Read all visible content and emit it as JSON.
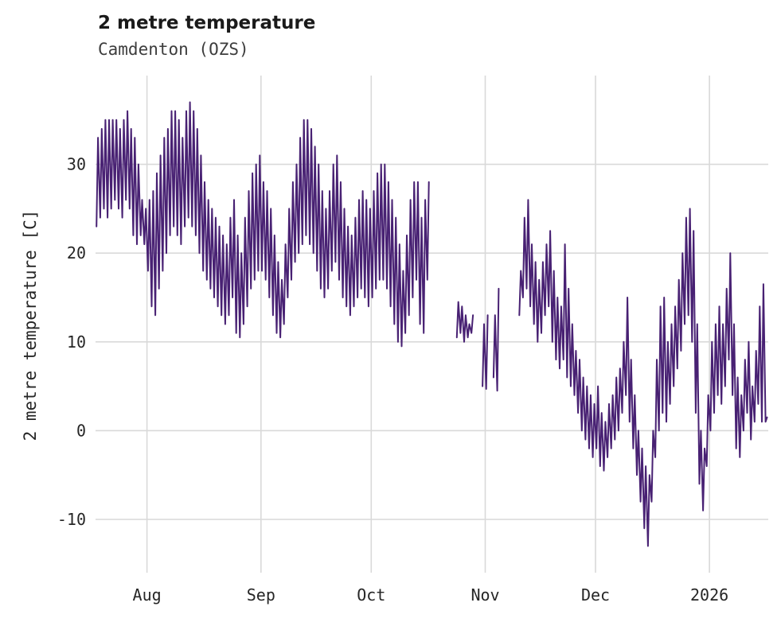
{
  "chart_data": {
    "type": "line",
    "title": "2 metre temperature",
    "subtitle": "Camdenton (OZS)",
    "ylabel": "2 metre temperature [C]",
    "xlabel": "",
    "line_color": "#482173",
    "grid_color": "#d9d9d9",
    "background": "#ffffff",
    "legend": "none",
    "grid": true,
    "xlim_days": [
      0,
      183
    ],
    "ylim": [
      -16,
      40
    ],
    "xticks": [
      {
        "label": "Aug",
        "day": 14
      },
      {
        "label": "Sep",
        "day": 45
      },
      {
        "label": "Oct",
        "day": 75
      },
      {
        "label": "Nov",
        "day": 106
      },
      {
        "label": "Dec",
        "day": 136
      },
      {
        "label": "2026",
        "day": 167
      }
    ],
    "yticks": [
      -10,
      0,
      10,
      20,
      30
    ],
    "series": [
      {
        "name": "2 metre temperature",
        "unit": "C",
        "segments": [
          {
            "start_day": 0,
            "daily_min_max": [
              [
                23,
                33
              ],
              [
                24,
                34
              ],
              [
                25,
                35
              ],
              [
                24,
                35
              ],
              [
                25,
                35
              ],
              [
                26,
                35
              ],
              [
                25,
                34
              ],
              [
                24,
                35
              ],
              [
                26,
                36
              ],
              [
                25,
                34
              ],
              [
                22,
                33
              ],
              [
                21,
                30
              ],
              [
                22,
                26
              ],
              [
                21,
                25
              ],
              [
                18,
                26
              ],
              [
                14,
                27
              ],
              [
                13,
                29
              ],
              [
                16,
                31
              ],
              [
                18,
                33
              ],
              [
                20,
                34
              ],
              [
                22,
                36
              ],
              [
                23,
                36
              ],
              [
                22,
                35
              ],
              [
                21,
                33
              ],
              [
                23,
                36
              ],
              [
                24,
                37
              ],
              [
                23,
                36
              ],
              [
                22,
                34
              ],
              [
                20,
                31
              ],
              [
                18,
                28
              ],
              [
                17,
                26
              ],
              [
                16,
                25
              ],
              [
                15,
                24
              ],
              [
                14,
                23
              ],
              [
                13,
                22
              ],
              [
                12,
                21
              ],
              [
                13,
                24
              ],
              [
                15,
                26
              ],
              [
                11,
                22
              ],
              [
                10.5,
                20
              ],
              [
                12,
                24
              ],
              [
                14,
                27
              ],
              [
                16,
                29
              ],
              [
                17,
                30
              ],
              [
                18,
                31
              ],
              [
                18,
                28
              ],
              [
                17,
                27
              ],
              [
                15,
                25
              ],
              [
                13,
                22
              ],
              [
                11,
                19
              ],
              [
                10.5,
                17
              ],
              [
                12,
                21
              ],
              [
                15,
                25
              ],
              [
                17,
                28
              ],
              [
                19,
                30
              ],
              [
                20,
                33
              ],
              [
                21,
                35
              ],
              [
                22,
                35
              ],
              [
                21,
                34
              ],
              [
                20,
                32
              ],
              [
                18,
                30
              ],
              [
                16,
                27
              ],
              [
                15,
                25
              ],
              [
                16,
                27
              ],
              [
                18,
                30
              ],
              [
                19,
                31
              ],
              [
                17,
                28
              ],
              [
                15,
                25
              ],
              [
                14,
                23
              ],
              [
                13,
                22
              ],
              [
                14,
                24
              ],
              [
                15,
                26
              ],
              [
                16,
                27
              ],
              [
                15,
                26
              ],
              [
                14,
                25
              ],
              [
                15,
                27
              ],
              [
                16,
                29
              ],
              [
                17,
                30
              ],
              [
                17,
                30
              ],
              [
                16,
                28
              ],
              [
                14,
                26
              ],
              [
                12,
                24
              ],
              [
                10,
                21
              ],
              [
                9.5,
                18
              ],
              [
                11,
                22
              ],
              [
                13,
                26
              ],
              [
                15,
                28
              ],
              [
                17,
                28
              ],
              [
                12,
                24
              ],
              [
                11,
                26
              ],
              [
                17,
                28
              ]
            ]
          },
          {
            "start_day": 98,
            "daily_min_max": [
              [
                10.5,
                14.5
              ],
              [
                11,
                14
              ],
              [
                10,
                13
              ],
              [
                10.5,
                12
              ],
              [
                11,
                13
              ]
            ]
          },
          {
            "start_day": 105,
            "daily_min_max": [
              [
                5,
                12
              ],
              [
                4.7,
                13
              ]
            ]
          },
          {
            "start_day": 108,
            "daily_min_max": [
              [
                6,
                13
              ],
              [
                4.5,
                16
              ]
            ]
          },
          {
            "start_day": 115,
            "daily_min_max": [
              [
                13,
                18
              ],
              [
                15,
                24
              ],
              [
                16,
                26
              ],
              [
                14,
                21
              ],
              [
                12,
                19
              ],
              [
                10,
                17
              ],
              [
                11,
                19
              ],
              [
                13,
                21
              ],
              [
                14,
                22.5
              ],
              [
                10,
                18
              ],
              [
                8,
                15
              ],
              [
                7,
                14
              ],
              [
                8,
                21
              ],
              [
                6,
                16
              ],
              [
                5,
                12
              ],
              [
                4,
                9
              ],
              [
                2,
                8
              ],
              [
                0,
                6
              ],
              [
                -1,
                5
              ],
              [
                -2,
                4
              ],
              [
                -3,
                3
              ],
              [
                -2,
                5
              ],
              [
                -4,
                2
              ],
              [
                -4.5,
                1
              ],
              [
                -3,
                3
              ],
              [
                -2,
                4
              ],
              [
                -1,
                6
              ],
              [
                0,
                7
              ],
              [
                2,
                10
              ],
              [
                4,
                15
              ],
              [
                1,
                8
              ],
              [
                -2,
                4
              ],
              [
                -5,
                0
              ],
              [
                -8,
                -2
              ],
              [
                -11,
                -4
              ],
              [
                -13,
                -5
              ],
              [
                -8,
                0
              ],
              [
                -3,
                8
              ],
              [
                0,
                14
              ],
              [
                2,
                15
              ],
              [
                1,
                10
              ],
              [
                3,
                12
              ],
              [
                5,
                14
              ],
              [
                7,
                17
              ],
              [
                9,
                20
              ],
              [
                12,
                24
              ],
              [
                13,
                25
              ],
              [
                10,
                22.5
              ],
              [
                2,
                12
              ],
              [
                -6,
                0
              ],
              [
                -9,
                -2
              ],
              [
                -4,
                4
              ],
              [
                0,
                10
              ],
              [
                2,
                12
              ],
              [
                4,
                14
              ],
              [
                3,
                12
              ],
              [
                5,
                16
              ],
              [
                8,
                20
              ],
              [
                4,
                12
              ],
              [
                -2,
                6
              ],
              [
                -3,
                4
              ],
              [
                0,
                8
              ],
              [
                2,
                10
              ],
              [
                -1,
                5
              ],
              [
                1,
                9
              ],
              [
                3,
                14
              ],
              [
                1,
                16.5
              ],
              [
                1,
                1.5
              ]
            ]
          }
        ]
      }
    ]
  }
}
